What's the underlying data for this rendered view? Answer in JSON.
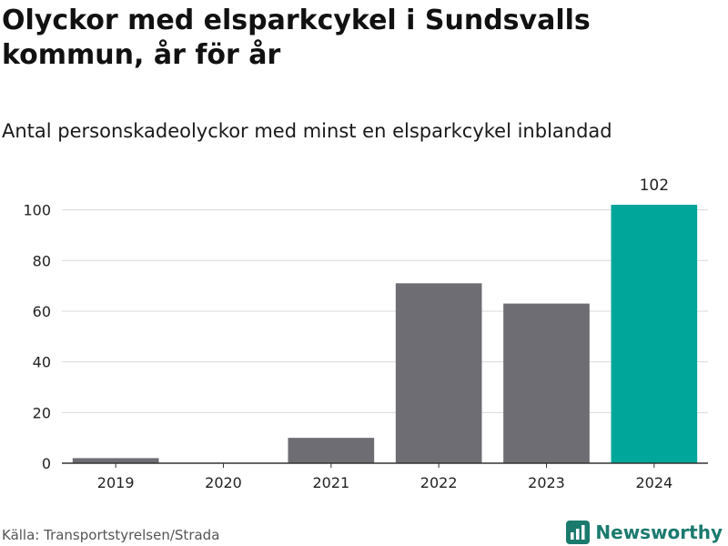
{
  "title": "Olyckor med elsparkcykel i Sundsvalls kommun, år för år",
  "subtitle": "Antal personskadeolyckor med minst en elsparkcykel inblandad",
  "source": "Källa: Transportstyrelsen/Strada",
  "brand": {
    "name": "Newsworthy",
    "icon": "bar-chart-logo-icon",
    "color": "#1b7a6e"
  },
  "chart_data": {
    "type": "bar",
    "categories": [
      "2019",
      "2020",
      "2021",
      "2022",
      "2023",
      "2024"
    ],
    "values": [
      2,
      0,
      10,
      71,
      63,
      102
    ],
    "colors": [
      "#6e6d73",
      "#6e6d73",
      "#6e6d73",
      "#6e6d73",
      "#6e6d73",
      "#00a699"
    ],
    "data_labels": [
      "",
      "",
      "",
      "",
      "",
      "102"
    ],
    "yticks": [
      0,
      20,
      40,
      60,
      80,
      100
    ],
    "ylim": [
      0,
      102
    ],
    "grid": true,
    "xlabel": "",
    "ylabel": ""
  }
}
